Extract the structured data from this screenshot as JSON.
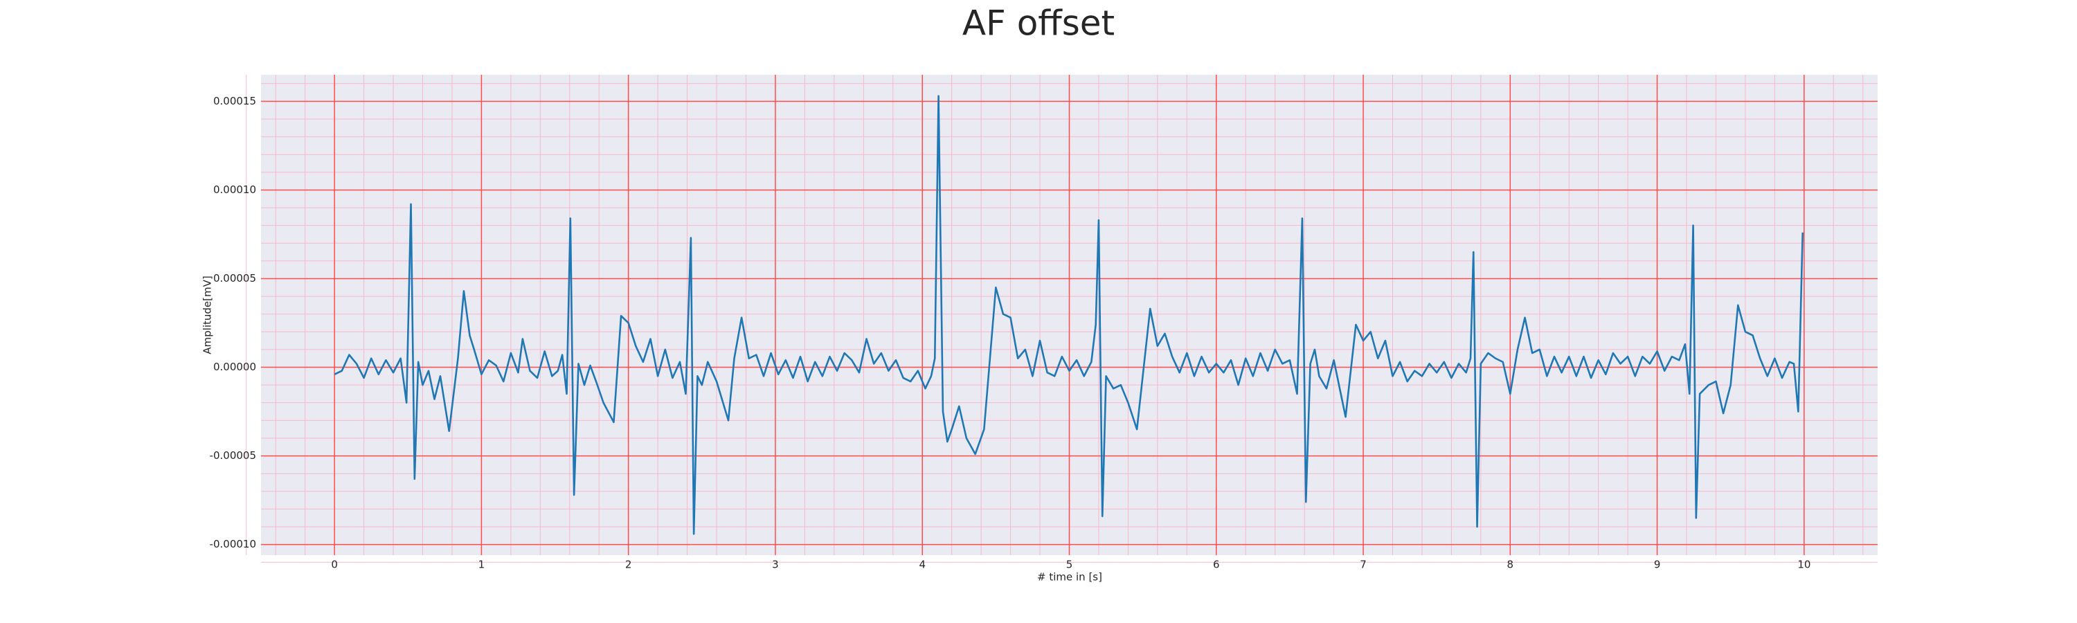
{
  "chart_data": {
    "type": "line",
    "title": "AF offset",
    "xlabel": "# time in [s]",
    "ylabel": "Amplitude[mV]",
    "xlim": [
      -0.5,
      10.5
    ],
    "xticks": [
      0,
      1,
      2,
      3,
      4,
      5,
      6,
      7,
      8,
      9,
      10
    ],
    "ylim": [
      -0.000106,
      0.000165
    ],
    "yticks": [
      {
        "value": -0.0001,
        "label": "-0.00010"
      },
      {
        "value": -5e-05,
        "label": "-0.00005"
      },
      {
        "value": 0,
        "label": "0.00000"
      },
      {
        "value": 5e-05,
        "label": "0.00005"
      },
      {
        "value": 0.0001,
        "label": "0.00010"
      },
      {
        "value": 0.00015,
        "label": "0.00015"
      }
    ],
    "grid": true,
    "minor_grid": true,
    "grid_color": "#ff4d4d",
    "minor_grid_color": "#f7b8c8",
    "background": "#eaeaf2",
    "series": [
      {
        "color": "#1f77b4",
        "x": [
          0,
          0.05,
          0.1,
          0.15,
          0.2,
          0.25,
          0.3,
          0.35,
          0.4,
          0.45,
          0.49,
          0.52,
          0.545,
          0.57,
          0.6,
          0.64,
          0.68,
          0.72,
          0.78,
          0.84,
          0.88,
          0.92,
          0.95,
          1.0,
          1.05,
          1.1,
          1.15,
          1.2,
          1.25,
          1.28,
          1.33,
          1.38,
          1.43,
          1.48,
          1.52,
          1.55,
          1.58,
          1.605,
          1.63,
          1.66,
          1.7,
          1.74,
          1.78,
          1.83,
          1.9,
          1.95,
          2.0,
          2.05,
          2.1,
          2.15,
          2.2,
          2.25,
          2.3,
          2.35,
          2.39,
          2.425,
          2.445,
          2.47,
          2.5,
          2.54,
          2.6,
          2.68,
          2.72,
          2.77,
          2.82,
          2.87,
          2.92,
          2.97,
          3.02,
          3.07,
          3.12,
          3.17,
          3.22,
          3.27,
          3.32,
          3.37,
          3.42,
          3.47,
          3.52,
          3.57,
          3.62,
          3.67,
          3.72,
          3.77,
          3.82,
          3.87,
          3.92,
          3.97,
          4.02,
          4.06,
          4.085,
          4.11,
          4.14,
          4.17,
          4.2,
          4.25,
          4.3,
          4.36,
          4.42,
          4.5,
          4.55,
          4.6,
          4.65,
          4.7,
          4.75,
          4.8,
          4.85,
          4.9,
          4.95,
          5.0,
          5.05,
          5.1,
          5.15,
          5.18,
          5.2,
          5.225,
          5.25,
          5.3,
          5.35,
          5.4,
          5.46,
          5.55,
          5.6,
          5.65,
          5.7,
          5.75,
          5.8,
          5.85,
          5.9,
          5.95,
          6.0,
          6.05,
          6.1,
          6.15,
          6.2,
          6.25,
          6.3,
          6.35,
          6.4,
          6.45,
          6.5,
          6.55,
          6.585,
          6.61,
          6.64,
          6.67,
          6.7,
          6.75,
          6.8,
          6.88,
          6.95,
          7.0,
          7.05,
          7.1,
          7.15,
          7.2,
          7.25,
          7.3,
          7.35,
          7.4,
          7.45,
          7.5,
          7.55,
          7.6,
          7.65,
          7.7,
          7.73,
          7.75,
          7.775,
          7.8,
          7.85,
          7.9,
          7.95,
          8.0,
          8.05,
          8.1,
          8.15,
          8.2,
          8.25,
          8.3,
          8.35,
          8.4,
          8.45,
          8.5,
          8.55,
          8.6,
          8.65,
          8.7,
          8.75,
          8.8,
          8.85,
          8.9,
          8.95,
          9.0,
          9.05,
          9.1,
          9.15,
          9.19,
          9.22,
          9.245,
          9.265,
          9.29,
          9.35,
          9.4,
          9.45,
          9.5,
          9.55,
          9.6,
          9.65,
          9.7,
          9.75,
          9.8,
          9.85,
          9.9,
          9.93,
          9.96,
          9.99
        ],
        "values": [
          -4e-06,
          -2e-06,
          7e-06,
          2e-06,
          -6e-06,
          5e-06,
          -4e-06,
          4e-06,
          -3e-06,
          5e-06,
          -2e-05,
          9.2e-05,
          -6.3e-05,
          3e-06,
          -1e-05,
          -2e-06,
          -1.8e-05,
          -5e-06,
          -3.6e-05,
          5e-06,
          4.3e-05,
          1.8e-05,
          1e-05,
          -4e-06,
          4e-06,
          1e-06,
          -8e-06,
          8e-06,
          -3e-06,
          1.6e-05,
          -2e-06,
          -6e-06,
          9e-06,
          -5e-06,
          -2e-06,
          7e-06,
          -1.5e-05,
          8.4e-05,
          -7.2e-05,
          2e-06,
          -1e-05,
          1e-06,
          -8e-06,
          -2e-05,
          -3.1e-05,
          2.9e-05,
          2.5e-05,
          1.2e-05,
          3e-06,
          1.6e-05,
          -5e-06,
          1e-05,
          -6e-06,
          3e-06,
          -1.5e-05,
          7.3e-05,
          -9.4e-05,
          -5e-06,
          -1e-05,
          3e-06,
          -8e-06,
          -3e-05,
          5e-06,
          2.8e-05,
          5e-06,
          7e-06,
          -5e-06,
          8e-06,
          -4e-06,
          4e-06,
          -6e-06,
          6e-06,
          -8e-06,
          3e-06,
          -5e-06,
          6e-06,
          -2e-06,
          8e-06,
          4e-06,
          -3e-06,
          1.6e-05,
          2e-06,
          8e-06,
          -2e-06,
          4e-06,
          -6e-06,
          -8e-06,
          -2e-06,
          -1.2e-05,
          -5e-06,
          5e-06,
          0.000153,
          -2.5e-05,
          -4.2e-05,
          -3.5e-05,
          -2.2e-05,
          -4e-05,
          -4.9e-05,
          -3.5e-05,
          4.5e-05,
          3e-05,
          2.8e-05,
          5e-06,
          1e-05,
          -5e-06,
          1.5e-05,
          -3e-06,
          -5e-06,
          6e-06,
          -2e-06,
          4e-06,
          -5e-06,
          3e-06,
          2.4e-05,
          8.3e-05,
          -8.4e-05,
          -5e-06,
          -1.2e-05,
          -1e-05,
          -2e-05,
          -3.5e-05,
          3.3e-05,
          1.2e-05,
          1.9e-05,
          6e-06,
          -3e-06,
          8e-06,
          -5e-06,
          6e-06,
          -3e-06,
          2e-06,
          -3e-06,
          4e-06,
          -1e-05,
          5e-06,
          -5e-06,
          8e-06,
          -2e-06,
          1e-05,
          2e-06,
          4e-06,
          -1.5e-05,
          8.4e-05,
          -7.6e-05,
          2e-06,
          1e-05,
          -5e-06,
          -1.2e-05,
          4e-06,
          -2.8e-05,
          2.4e-05,
          1.5e-05,
          2e-05,
          5e-06,
          1.5e-05,
          -5e-06,
          3e-06,
          -8e-06,
          -2e-06,
          -5e-06,
          2e-06,
          -3e-06,
          3e-06,
          -6e-06,
          2e-06,
          -3e-06,
          5e-06,
          6.5e-05,
          -9e-05,
          2e-06,
          8e-06,
          5e-06,
          3e-06,
          -1.5e-05,
          1e-05,
          2.8e-05,
          8e-06,
          1e-05,
          -5e-06,
          6e-06,
          -3e-06,
          6e-06,
          -5e-06,
          6e-06,
          -6e-06,
          4e-06,
          -4e-06,
          8e-06,
          2e-06,
          6e-06,
          -5e-06,
          6e-06,
          2e-06,
          9e-06,
          -2e-06,
          6e-06,
          4e-06,
          1.3e-05,
          -1.5e-05,
          8e-05,
          -8.5e-05,
          -1.5e-05,
          -1e-05,
          -8e-06,
          -2.6e-05,
          -1e-05,
          3.5e-05,
          2e-05,
          1.8e-05,
          5e-06,
          -5e-06,
          5e-06,
          -6e-06,
          3e-06,
          2e-06,
          -2.5e-05,
          7.6e-05
        ]
      }
    ]
  }
}
